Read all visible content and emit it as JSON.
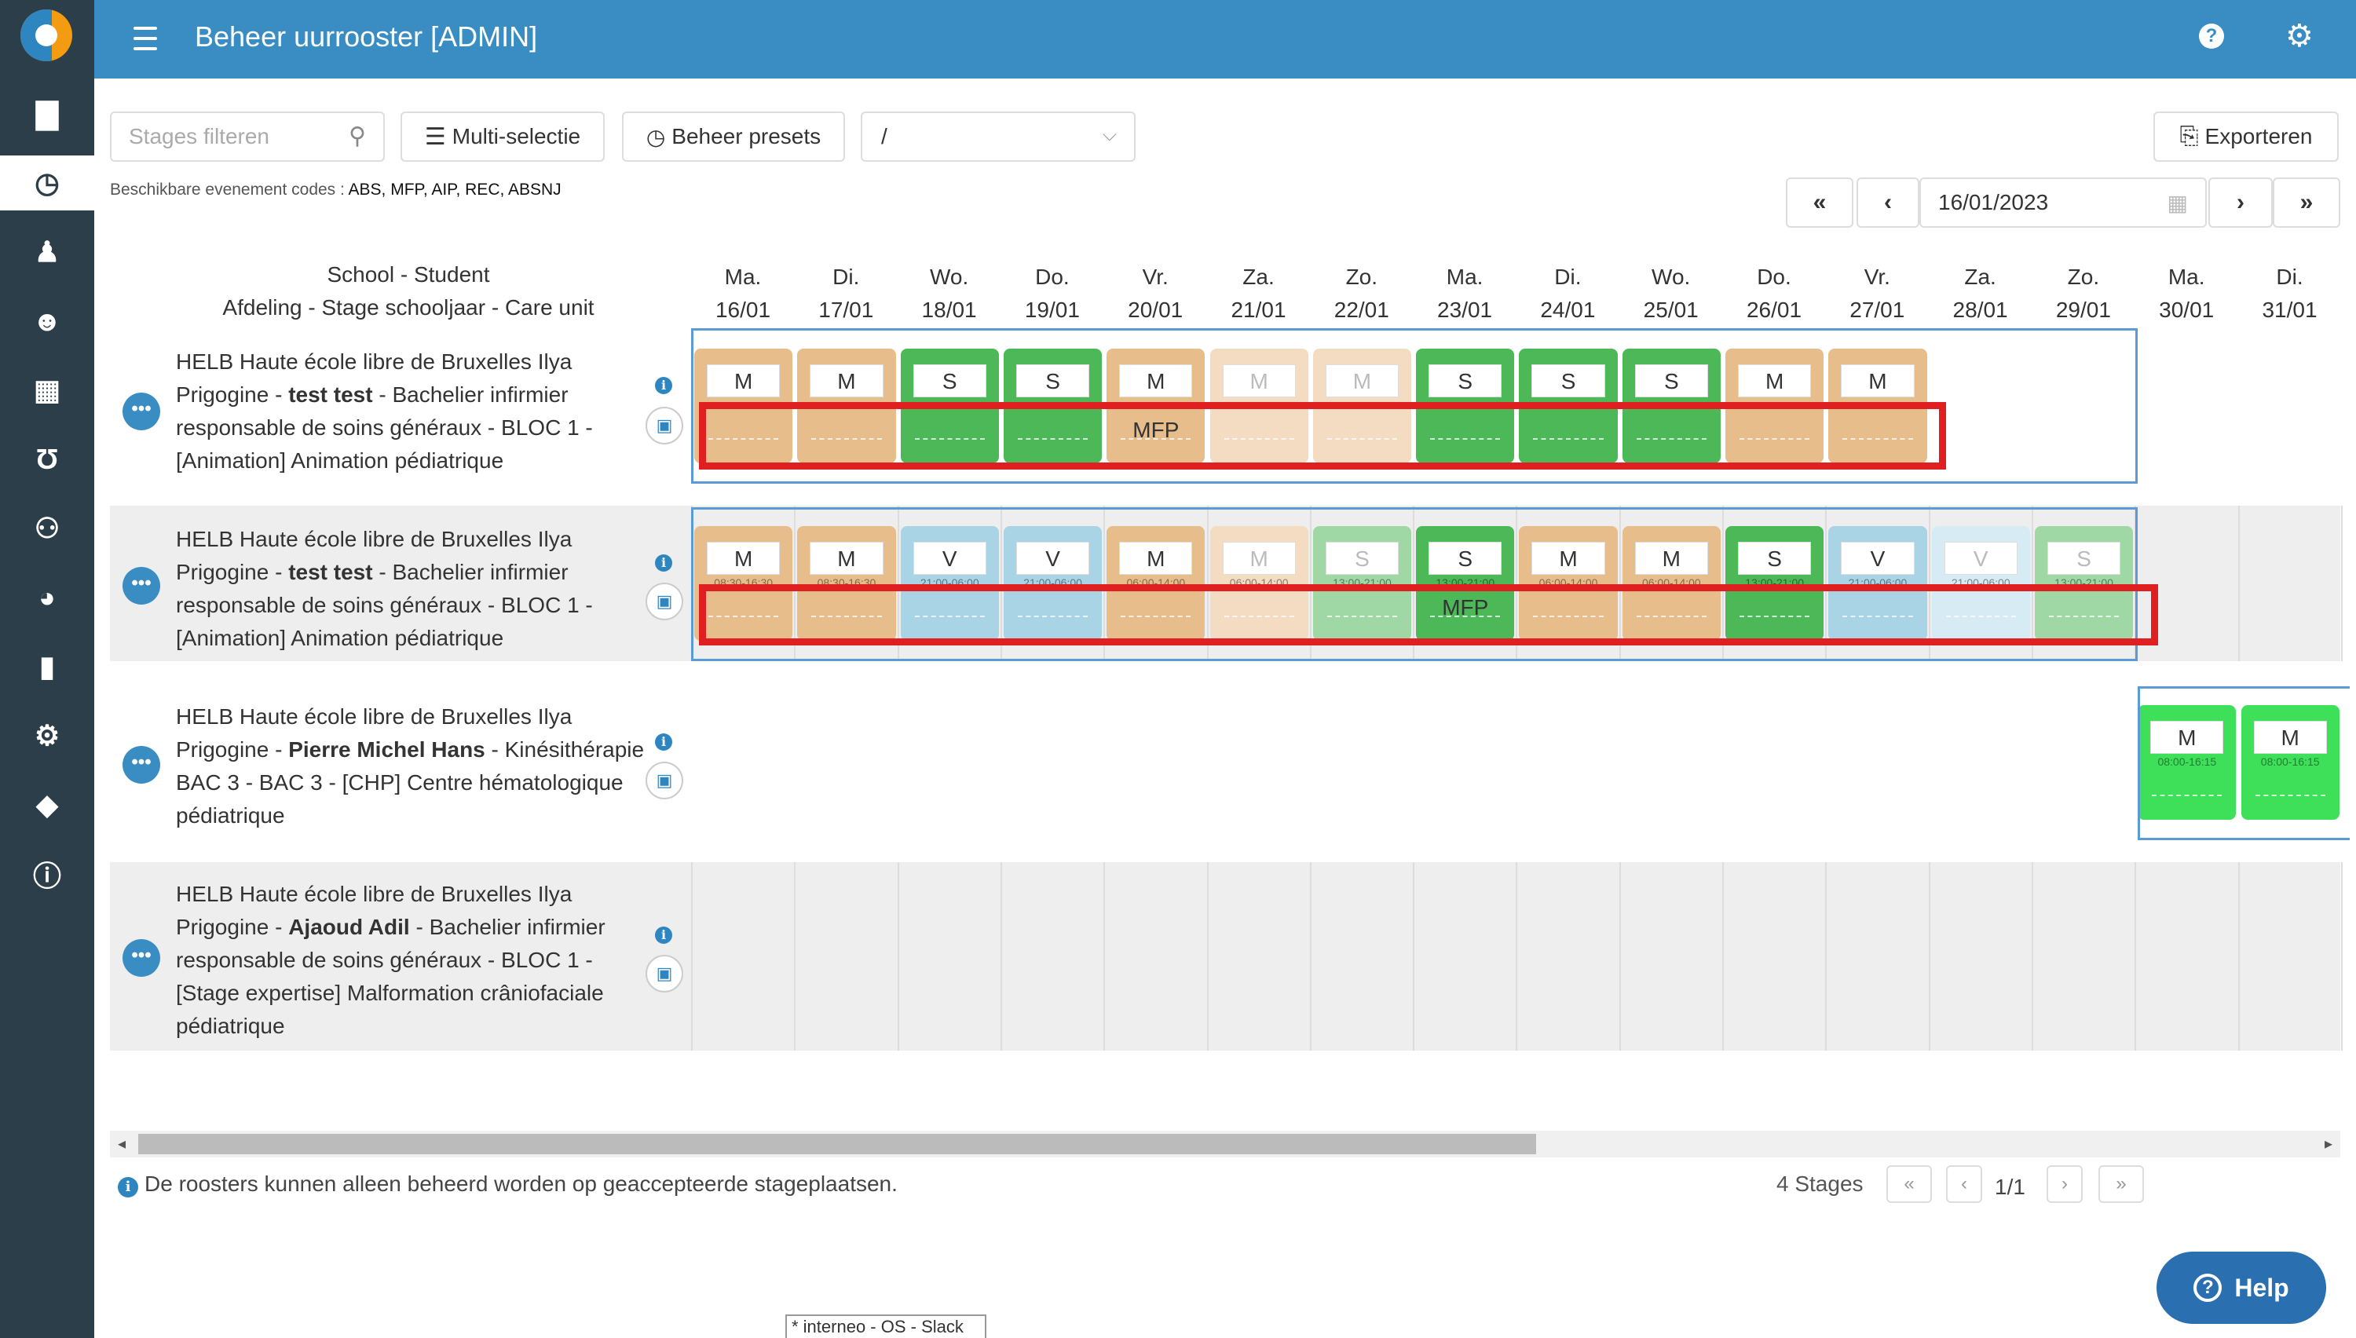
{
  "app": {
    "title": "Beheer uurrooster [ADMIN]"
  },
  "sidebar": {
    "items": [
      "calendar",
      "clock",
      "graduate",
      "smile",
      "school",
      "stethoscope",
      "people",
      "pie-chart",
      "id-card",
      "gears",
      "tags",
      "info"
    ]
  },
  "toolbar": {
    "filter_placeholder": "Stages filteren",
    "multi_select": "Multi-selectie",
    "presets": "Beheer presets",
    "preset_select": "/",
    "export": "Exporteren"
  },
  "codes": {
    "label": "Beschikbare evenement codes : ",
    "list": "ABS, MFP, AIP, REC, ABSNJ"
  },
  "datenav": {
    "date": "16/01/2023"
  },
  "grid": {
    "header1": "School - Student",
    "header2": "Afdeling - Stage schooljaar - Care unit",
    "days": [
      {
        "name": "Ma.",
        "date": "16/01"
      },
      {
        "name": "Di.",
        "date": "17/01"
      },
      {
        "name": "Wo.",
        "date": "18/01"
      },
      {
        "name": "Do.",
        "date": "19/01"
      },
      {
        "name": "Vr.",
        "date": "20/01"
      },
      {
        "name": "Za.",
        "date": "21/01"
      },
      {
        "name": "Zo.",
        "date": "22/01"
      },
      {
        "name": "Ma.",
        "date": "23/01"
      },
      {
        "name": "Di.",
        "date": "24/01"
      },
      {
        "name": "Wo.",
        "date": "25/01"
      },
      {
        "name": "Do.",
        "date": "26/01"
      },
      {
        "name": "Vr.",
        "date": "27/01"
      },
      {
        "name": "Za.",
        "date": "28/01"
      },
      {
        "name": "Zo.",
        "date": "29/01"
      },
      {
        "name": "Ma.",
        "date": "30/01"
      },
      {
        "name": "Di.",
        "date": "31/01"
      }
    ],
    "rows": [
      {
        "school": "HELB Haute école libre de Bruxelles Ilya Prigogine - ",
        "student": "test test",
        "rest": " - Bachelier infirmier responsable de soins généraux - BLOC 1 - [Animation] Animation pédiatrique"
      },
      {
        "school": "HELB Haute école libre de Bruxelles Ilya Prigogine - ",
        "student": "test test",
        "rest": " - Bachelier infirmier responsable de soins généraux - BLOC 1 - [Animation] Animation pédiatrique"
      },
      {
        "school": "HELB Haute école libre de Bruxelles Ilya Prigogine - ",
        "student": "Pierre Michel Hans",
        "rest": " - Kinésithérapie BAC 3 - BAC 3 - [CHP] Centre hématologique pédiatrique"
      },
      {
        "school": "HELB Haute école libre de Bruxelles Ilya Prigogine - ",
        "student": "Ajaoud Adil",
        "rest": " - Bachelier infirmier responsable de soins généraux - BLOC 1 - [Stage expertise] Malformation crâniofaciale pédiatrique"
      }
    ],
    "shifts_row1": [
      {
        "day": 0,
        "code": "M",
        "kind": "orange"
      },
      {
        "day": 1,
        "code": "M",
        "kind": "orange"
      },
      {
        "day": 2,
        "code": "S",
        "kind": "green"
      },
      {
        "day": 3,
        "code": "S",
        "kind": "green"
      },
      {
        "day": 4,
        "code": "M",
        "kind": "orange",
        "event": "MFP"
      },
      {
        "day": 5,
        "code": "M",
        "kind": "orange-light"
      },
      {
        "day": 6,
        "code": "M",
        "kind": "orange-light"
      },
      {
        "day": 7,
        "code": "S",
        "kind": "green"
      },
      {
        "day": 8,
        "code": "S",
        "kind": "green"
      },
      {
        "day": 9,
        "code": "S",
        "kind": "green"
      },
      {
        "day": 10,
        "code": "M",
        "kind": "orange"
      },
      {
        "day": 11,
        "code": "M",
        "kind": "orange"
      }
    ],
    "shifts_row2": [
      {
        "day": 0,
        "code": "M",
        "kind": "orange",
        "time": "08:30-16:30"
      },
      {
        "day": 1,
        "code": "M",
        "kind": "orange",
        "time": "08:30-16:30"
      },
      {
        "day": 2,
        "code": "V",
        "kind": "blue",
        "time": "21:00-06:00"
      },
      {
        "day": 3,
        "code": "V",
        "kind": "blue",
        "time": "21:00-06:00"
      },
      {
        "day": 4,
        "code": "M",
        "kind": "orange",
        "time": "06:00-14:00"
      },
      {
        "day": 5,
        "code": "M",
        "kind": "orange-light",
        "time": "06:00-14:00"
      },
      {
        "day": 6,
        "code": "S",
        "kind": "green-light",
        "time": "13:00-21:00"
      },
      {
        "day": 7,
        "code": "S",
        "kind": "green",
        "event": "MFP",
        "time": "13:00-21:00"
      },
      {
        "day": 8,
        "code": "M",
        "kind": "orange",
        "time": "06:00-14:00"
      },
      {
        "day": 9,
        "code": "M",
        "kind": "orange",
        "time": "06:00-14:00"
      },
      {
        "day": 10,
        "code": "S",
        "kind": "green",
        "time": "13:00-21:00"
      },
      {
        "day": 11,
        "code": "V",
        "kind": "blue",
        "time": "21:00-06:00"
      },
      {
        "day": 12,
        "code": "V",
        "kind": "blue-light",
        "time": "21:00-06:00"
      },
      {
        "day": 13,
        "code": "S",
        "kind": "green-light",
        "time": "13:00-21:00"
      }
    ],
    "shifts_row3": [
      {
        "day": 14,
        "code": "M",
        "kind": "bright",
        "time": "08:00-16:15"
      },
      {
        "day": 15,
        "code": "M",
        "kind": "bright",
        "time": "08:00-16:15"
      }
    ]
  },
  "colors": {
    "orange": "#e7bd8b",
    "orange-light": "#f4dcc2",
    "green": "#4cb857",
    "green-light": "#9fd8a5",
    "blue": "#a8d4e6",
    "blue-light": "#d6ebf4",
    "bright": "#3ee05a",
    "accent": "#3a8dc2",
    "sidebar": "#2c3e4a"
  },
  "footer": {
    "note": "De roosters kunnen alleen beheerd worden op geaccepteerde stageplaatsen.",
    "count": "4 Stages",
    "page": "1/1"
  },
  "help": {
    "label": "Help"
  },
  "tooltip": {
    "text": "* interneo - OS - Slack"
  }
}
